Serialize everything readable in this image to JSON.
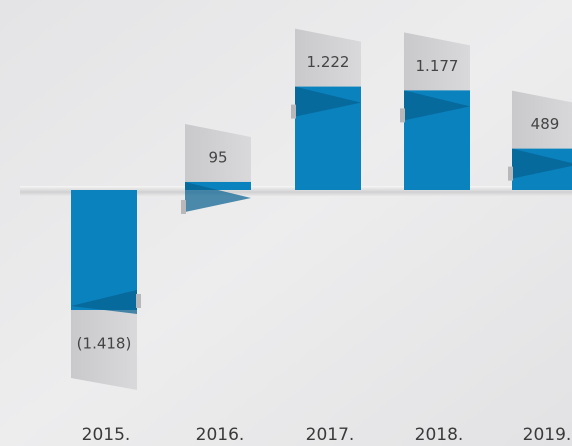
{
  "chart_data": {
    "type": "bar",
    "categories": [
      "2015.",
      "2016.",
      "2017.",
      "2018.",
      "2019."
    ],
    "values": [
      -1418,
      95,
      1222,
      1177,
      489
    ],
    "value_labels": [
      "(1.418)",
      "95",
      "1.222",
      "1.177",
      "489"
    ],
    "color": "#0a82bd"
  }
}
